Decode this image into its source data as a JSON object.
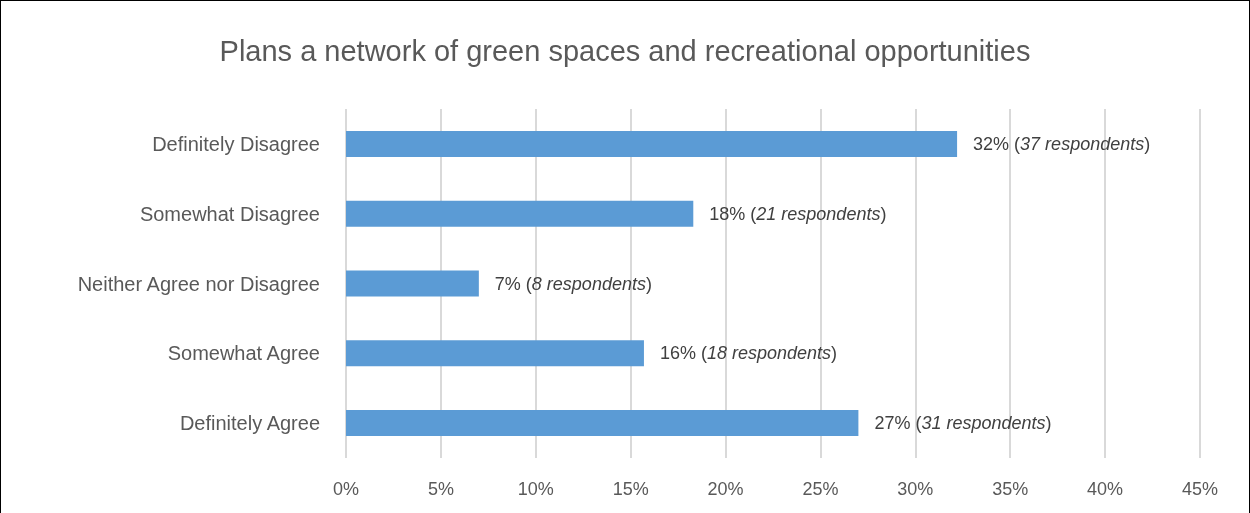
{
  "chart_data": {
    "type": "bar",
    "orientation": "horizontal",
    "title": "Plans a network of green spaces and recreational opportunities",
    "categories": [
      "Definitely Disagree",
      "Somewhat Disagree",
      "Neither Agree nor Disagree",
      "Somewhat Agree",
      "Definitely Agree"
    ],
    "values": [
      32.2,
      18.3,
      7.0,
      15.7,
      27.0
    ],
    "value_labels": [
      "32% (37 respondents)",
      "18% (21 respondents)",
      "7% (8 respondents)",
      "16% (18 respondents)",
      "27% (31 respondents)"
    ],
    "color": "#5b9bd5",
    "xlim": [
      0,
      45
    ],
    "xticks": [
      {
        "value": 0,
        "label": "0%"
      },
      {
        "value": 5,
        "label": "5%"
      },
      {
        "value": 10,
        "label": "10%"
      },
      {
        "value": 15,
        "label": "15%"
      },
      {
        "value": 20,
        "label": "20%"
      },
      {
        "value": 25,
        "label": "25%"
      },
      {
        "value": 30,
        "label": "30%"
      },
      {
        "value": 35,
        "label": "35%"
      },
      {
        "value": 40,
        "label": "40%"
      },
      {
        "value": 45,
        "label": "45%"
      }
    ],
    "grid": "x"
  }
}
